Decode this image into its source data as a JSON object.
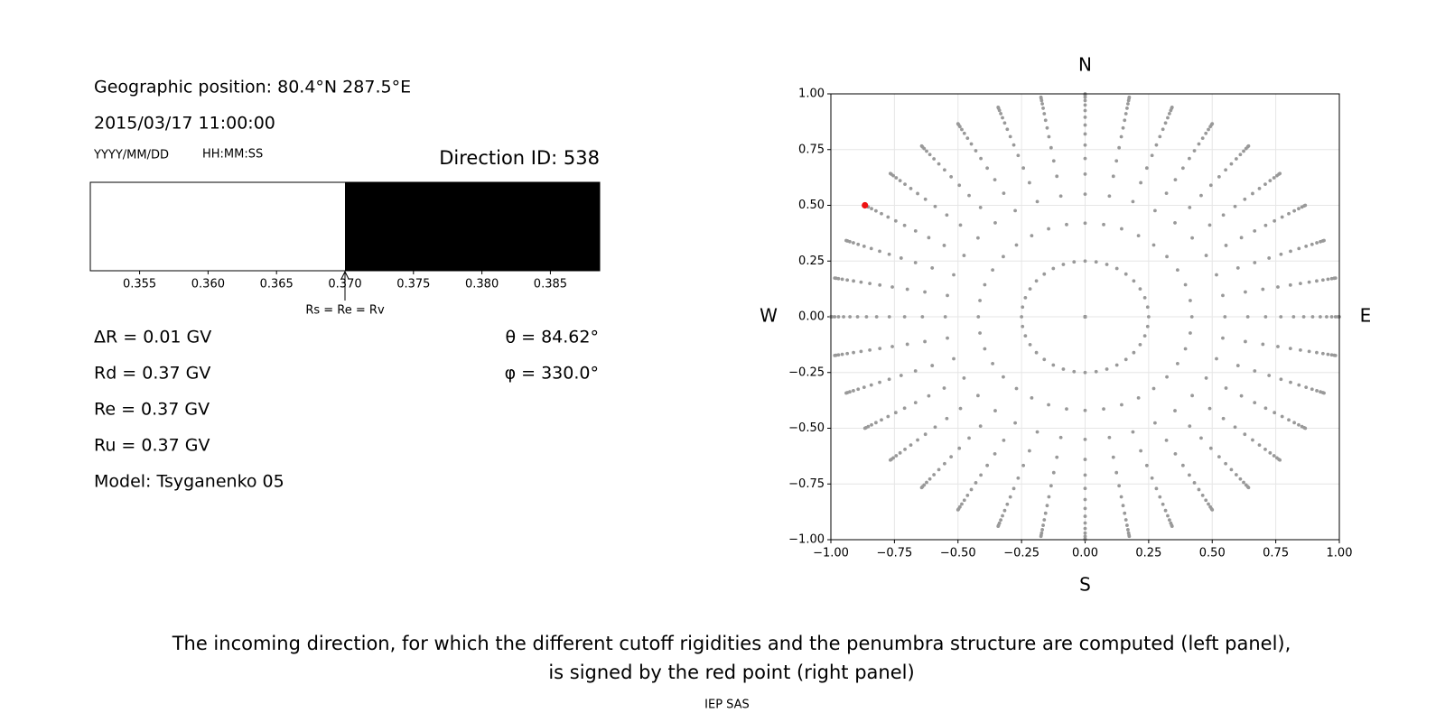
{
  "info": {
    "position": "Geographic position: 80.4°N 287.5°E",
    "datetime": "2015/03/17 11:00:00",
    "date_format": "YYYY/MM/DD",
    "time_format": "HH:MM:SS",
    "direction_id": "Direction ID: 538",
    "delta_r": "ΔR = 0.01 GV",
    "rd": "Rd = 0.37 GV",
    "re": "Re = 0.37 GV",
    "ru": "Ru = 0.37 GV",
    "model": "Model: Tsyganenko 05",
    "theta": "θ = 84.62°",
    "phi": "φ = 330.0°"
  },
  "chart_data": [
    {
      "type": "penumbra",
      "xlim": [
        0.3514,
        0.3886
      ],
      "xticks": [
        0.355,
        {
          "value": 0.36,
          "label": "0.360"
        },
        0.365,
        {
          "value": 0.37,
          "label": "0.370"
        },
        0.375,
        {
          "value": 0.38,
          "label": "0.380"
        },
        0.385
      ],
      "segments": [
        {
          "range": [
            0.3514,
            0.37
          ],
          "color": "#ffffff"
        },
        {
          "range": [
            0.37,
            0.3886
          ],
          "color": "#000000"
        }
      ],
      "annotation": {
        "text": "Rs = Re = Rv",
        "x": 0.37
      }
    },
    {
      "type": "direction-map",
      "xlim": [
        -1,
        1
      ],
      "ylim": [
        -1,
        1
      ],
      "xticks": [
        {
          "value": -1,
          "label": "−1.00"
        },
        {
          "value": -0.75,
          "label": "−0.75"
        },
        {
          "value": -0.5,
          "label": "−0.50"
        },
        {
          "value": -0.25,
          "label": "−0.25"
        },
        {
          "value": 0,
          "label": "0.00"
        },
        {
          "value": 0.25,
          "label": "0.25"
        },
        {
          "value": 0.5,
          "label": "0.50"
        },
        {
          "value": 0.75,
          "label": "0.75"
        },
        {
          "value": 1,
          "label": "1.00"
        }
      ],
      "yticks": [
        {
          "value": -1,
          "label": "−1.00"
        },
        {
          "value": -0.75,
          "label": "−0.75"
        },
        {
          "value": -0.5,
          "label": "−0.50"
        },
        {
          "value": -0.25,
          "label": "−0.25"
        },
        {
          "value": 0,
          "label": "0.00"
        },
        {
          "value": 0.25,
          "label": "0.25"
        },
        {
          "value": 0.5,
          "label": "0.50"
        },
        {
          "value": 0.75,
          "label": "0.75"
        },
        {
          "value": 1,
          "label": "1.00"
        }
      ],
      "grid": true,
      "compass": {
        "north": "N",
        "south": "S",
        "west": "W",
        "east": "E"
      },
      "series": [
        {
          "color": "#999999",
          "radii": [
            0,
            0.25,
            0.42,
            0.55,
            0.64,
            0.71,
            0.77,
            0.82,
            0.86,
            0.895,
            0.925,
            0.95,
            0.97,
            0.985,
            0.995,
            1.0
          ],
          "angles": [
            0,
            10,
            20,
            30,
            40,
            50,
            60,
            70,
            80,
            90,
            100,
            110,
            120,
            130,
            140,
            150,
            160,
            170,
            180,
            190,
            200,
            210,
            220,
            230,
            240,
            250,
            260,
            270,
            280,
            290,
            300,
            310,
            320,
            330,
            340,
            350
          ]
        },
        {
          "color": "#ee1111",
          "x": [
            -0.866
          ],
          "y": [
            0.5
          ]
        }
      ]
    }
  ],
  "caption": [
    "The incoming direction, for which the different cutoff rigidities and the penumbra structure are computed (left panel),",
    "is signed by the red point (right panel)"
  ],
  "credit": "IEP SAS"
}
